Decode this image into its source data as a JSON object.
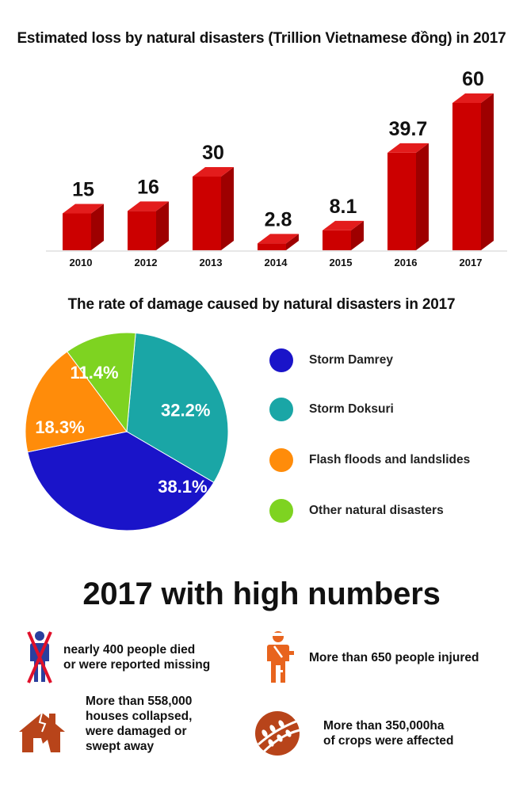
{
  "bar_chart_title": "Estimated loss by natural disasters (Trillion Vietnamese đồng) in 2017",
  "pie_chart_title": "The rate of damage caused by natural disasters in 2017",
  "chart_data": [
    {
      "type": "bar",
      "title": "Estimated loss by natural disasters (Trillion Vietnamese đồng) in 2017",
      "categories": [
        "2010",
        "2012",
        "2013",
        "2014",
        "2015",
        "2016",
        "2017"
      ],
      "values": [
        15,
        16,
        30,
        2.8,
        8.1,
        39.7,
        60
      ],
      "value_labels": [
        "15",
        "16",
        "30",
        "2.8",
        "8.1",
        "39.7",
        "60"
      ],
      "ylim": [
        0,
        60
      ],
      "grid": false,
      "colors": {
        "front": "#cc0000",
        "side": "#9e0000",
        "top": "#e31c1c"
      }
    },
    {
      "type": "pie",
      "title": "The rate of damage caused by natural disasters in 2017",
      "slices": [
        {
          "label": "Storm Damrey",
          "value": 38.1,
          "text": "38.1%",
          "color": "#1a14c9"
        },
        {
          "label": "Storm Doksuri",
          "value": 32.2,
          "text": "32.2%",
          "color": "#1aa6a6"
        },
        {
          "label": "Flash floods and landslides",
          "value": 18.3,
          "text": "18.3%",
          "color": "#ff8c0a"
        },
        {
          "label": "Other natural disasters",
          "value": 11.4,
          "text": "11.4%",
          "color": "#7ed321"
        }
      ],
      "legend_placement": "right"
    }
  ],
  "legend": [
    {
      "label": "Storm Damrey",
      "color": "#1a14c9"
    },
    {
      "label": "Storm Doksuri",
      "color": "#1aa6a6"
    },
    {
      "label": "Flash floods and landslides",
      "color": "#ff8c0a"
    },
    {
      "label": "Other natural disasters",
      "color": "#7ed321"
    }
  ],
  "stats": {
    "title": "2017 with high numbers",
    "died": {
      "text": "nearly 400 people died\nor were reported missing",
      "icon": "crossed-person-icon"
    },
    "injured": {
      "text": "More than 650 people injured",
      "icon": "injured-person-icon"
    },
    "houses": {
      "text": "More than 558,000\nhouses collapsed,\n were damaged or\nswept away",
      "icon": "collapsed-house-icon"
    },
    "crops": {
      "text": "More than 350,000ha\nof crops were affected",
      "icon": "crops-field-icon"
    },
    "icon_color": "#e8641e"
  }
}
